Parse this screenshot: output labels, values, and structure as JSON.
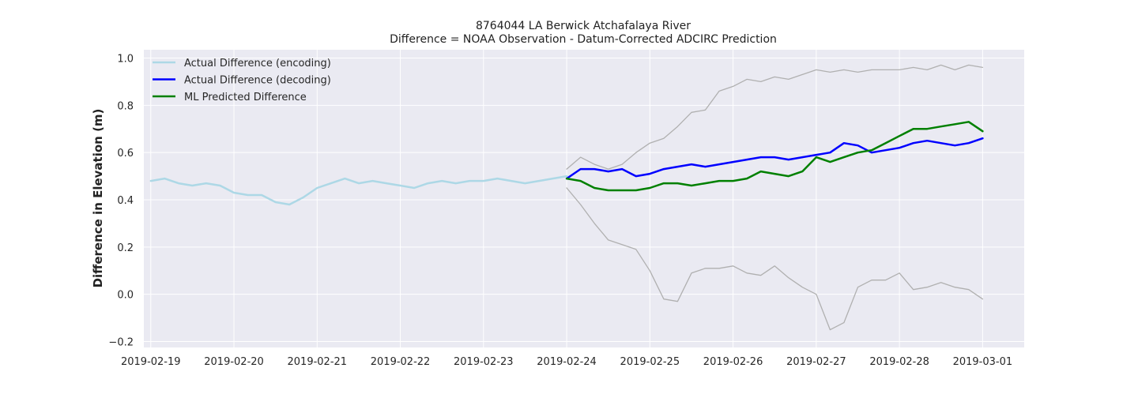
{
  "chart_data": {
    "type": "line",
    "title": "8764044 LA Berwick Atchafalaya River",
    "subtitle": "Difference = NOAA Observation - Datum-Corrected ADCIRC Prediction",
    "xlabel": "",
    "ylabel": "Difference in Elevation (m)",
    "x_ticks": [
      "2019-02-19",
      "2019-02-20",
      "2019-02-21",
      "2019-02-22",
      "2019-02-23",
      "2019-02-24",
      "2019-02-25",
      "2019-02-26",
      "2019-02-27",
      "2019-02-28",
      "2019-03-01"
    ],
    "y_ticks": [
      "−0.2",
      "0.0",
      "0.2",
      "0.4",
      "0.6",
      "0.8",
      "1.0"
    ],
    "y_tick_values": [
      -0.2,
      0.0,
      0.2,
      0.4,
      0.6,
      0.8,
      1.0
    ],
    "xlim": [
      "2019-02-18T22:00",
      "2019-03-01T12:00"
    ],
    "ylim": [
      -0.225,
      1.035
    ],
    "grid": true,
    "legend_position": "top-left",
    "colors": {
      "background": "#eaeaf2",
      "grid": "#ffffff",
      "encoding": "#add8e6",
      "decoding": "#0000ff",
      "predicted": "#008000",
      "bounds": "#b0b0b0"
    },
    "series": [
      {
        "name": "Actual Difference (encoding)",
        "color": "#add8e6",
        "width": 2.5,
        "points": [
          [
            "2019-02-19T00:00",
            0.48
          ],
          [
            "2019-02-19T04:00",
            0.49
          ],
          [
            "2019-02-19T08:00",
            0.47
          ],
          [
            "2019-02-19T12:00",
            0.46
          ],
          [
            "2019-02-19T16:00",
            0.47
          ],
          [
            "2019-02-19T20:00",
            0.46
          ],
          [
            "2019-02-20T00:00",
            0.43
          ],
          [
            "2019-02-20T04:00",
            0.42
          ],
          [
            "2019-02-20T08:00",
            0.42
          ],
          [
            "2019-02-20T12:00",
            0.39
          ],
          [
            "2019-02-20T16:00",
            0.38
          ],
          [
            "2019-02-20T20:00",
            0.41
          ],
          [
            "2019-02-21T00:00",
            0.45
          ],
          [
            "2019-02-21T04:00",
            0.47
          ],
          [
            "2019-02-21T08:00",
            0.49
          ],
          [
            "2019-02-21T12:00",
            0.47
          ],
          [
            "2019-02-21T16:00",
            0.48
          ],
          [
            "2019-02-21T20:00",
            0.47
          ],
          [
            "2019-02-22T00:00",
            0.46
          ],
          [
            "2019-02-22T04:00",
            0.45
          ],
          [
            "2019-02-22T08:00",
            0.47
          ],
          [
            "2019-02-22T12:00",
            0.48
          ],
          [
            "2019-02-22T16:00",
            0.47
          ],
          [
            "2019-02-22T20:00",
            0.48
          ],
          [
            "2019-02-23T00:00",
            0.48
          ],
          [
            "2019-02-23T04:00",
            0.49
          ],
          [
            "2019-02-23T08:00",
            0.48
          ],
          [
            "2019-02-23T12:00",
            0.47
          ],
          [
            "2019-02-23T16:00",
            0.48
          ],
          [
            "2019-02-23T20:00",
            0.49
          ],
          [
            "2019-02-24T00:00",
            0.5
          ]
        ]
      },
      {
        "name": "Actual Difference (decoding)",
        "color": "#0000ff",
        "width": 2.5,
        "points": [
          [
            "2019-02-24T00:00",
            0.49
          ],
          [
            "2019-02-24T04:00",
            0.53
          ],
          [
            "2019-02-24T08:00",
            0.53
          ],
          [
            "2019-02-24T12:00",
            0.52
          ],
          [
            "2019-02-24T16:00",
            0.53
          ],
          [
            "2019-02-24T20:00",
            0.5
          ],
          [
            "2019-02-25T00:00",
            0.51
          ],
          [
            "2019-02-25T04:00",
            0.53
          ],
          [
            "2019-02-25T08:00",
            0.54
          ],
          [
            "2019-02-25T12:00",
            0.55
          ],
          [
            "2019-02-25T16:00",
            0.54
          ],
          [
            "2019-02-25T20:00",
            0.55
          ],
          [
            "2019-02-26T00:00",
            0.56
          ],
          [
            "2019-02-26T04:00",
            0.57
          ],
          [
            "2019-02-26T08:00",
            0.58
          ],
          [
            "2019-02-26T12:00",
            0.58
          ],
          [
            "2019-02-26T16:00",
            0.57
          ],
          [
            "2019-02-26T20:00",
            0.58
          ],
          [
            "2019-02-27T00:00",
            0.59
          ],
          [
            "2019-02-27T04:00",
            0.6
          ],
          [
            "2019-02-27T08:00",
            0.64
          ],
          [
            "2019-02-27T12:00",
            0.63
          ],
          [
            "2019-02-27T16:00",
            0.6
          ],
          [
            "2019-02-27T20:00",
            0.61
          ],
          [
            "2019-02-28T00:00",
            0.62
          ],
          [
            "2019-02-28T04:00",
            0.64
          ],
          [
            "2019-02-28T08:00",
            0.65
          ],
          [
            "2019-02-28T12:00",
            0.64
          ],
          [
            "2019-02-28T16:00",
            0.63
          ],
          [
            "2019-02-28T20:00",
            0.64
          ],
          [
            "2019-03-01T00:00",
            0.66
          ]
        ]
      },
      {
        "name": "ML Predicted Difference",
        "color": "#008000",
        "width": 2.5,
        "points": [
          [
            "2019-02-24T00:00",
            0.49
          ],
          [
            "2019-02-24T04:00",
            0.48
          ],
          [
            "2019-02-24T08:00",
            0.45
          ],
          [
            "2019-02-24T12:00",
            0.44
          ],
          [
            "2019-02-24T16:00",
            0.44
          ],
          [
            "2019-02-24T20:00",
            0.44
          ],
          [
            "2019-02-25T00:00",
            0.45
          ],
          [
            "2019-02-25T04:00",
            0.47
          ],
          [
            "2019-02-25T08:00",
            0.47
          ],
          [
            "2019-02-25T12:00",
            0.46
          ],
          [
            "2019-02-25T16:00",
            0.47
          ],
          [
            "2019-02-25T20:00",
            0.48
          ],
          [
            "2019-02-26T00:00",
            0.48
          ],
          [
            "2019-02-26T04:00",
            0.49
          ],
          [
            "2019-02-26T08:00",
            0.52
          ],
          [
            "2019-02-26T12:00",
            0.51
          ],
          [
            "2019-02-26T16:00",
            0.5
          ],
          [
            "2019-02-26T20:00",
            0.52
          ],
          [
            "2019-02-27T00:00",
            0.58
          ],
          [
            "2019-02-27T04:00",
            0.56
          ],
          [
            "2019-02-27T08:00",
            0.58
          ],
          [
            "2019-02-27T12:00",
            0.6
          ],
          [
            "2019-02-27T16:00",
            0.61
          ],
          [
            "2019-02-27T20:00",
            0.64
          ],
          [
            "2019-02-28T00:00",
            0.67
          ],
          [
            "2019-02-28T04:00",
            0.7
          ],
          [
            "2019-02-28T08:00",
            0.7
          ],
          [
            "2019-02-28T12:00",
            0.71
          ],
          [
            "2019-02-28T16:00",
            0.72
          ],
          [
            "2019-02-28T20:00",
            0.73
          ],
          [
            "2019-03-01T00:00",
            0.69
          ]
        ]
      },
      {
        "name": "",
        "color": "#b0b0b0",
        "width": 1.3,
        "points": [
          [
            "2019-02-24T00:00",
            0.53
          ],
          [
            "2019-02-24T04:00",
            0.58
          ],
          [
            "2019-02-24T08:00",
            0.55
          ],
          [
            "2019-02-24T12:00",
            0.53
          ],
          [
            "2019-02-24T16:00",
            0.55
          ],
          [
            "2019-02-24T20:00",
            0.6
          ],
          [
            "2019-02-25T00:00",
            0.64
          ],
          [
            "2019-02-25T04:00",
            0.66
          ],
          [
            "2019-02-25T08:00",
            0.71
          ],
          [
            "2019-02-25T12:00",
            0.77
          ],
          [
            "2019-02-25T16:00",
            0.78
          ],
          [
            "2019-02-25T20:00",
            0.86
          ],
          [
            "2019-02-26T00:00",
            0.88
          ],
          [
            "2019-02-26T04:00",
            0.91
          ],
          [
            "2019-02-26T08:00",
            0.9
          ],
          [
            "2019-02-26T12:00",
            0.92
          ],
          [
            "2019-02-26T16:00",
            0.91
          ],
          [
            "2019-02-26T20:00",
            0.93
          ],
          [
            "2019-02-27T00:00",
            0.95
          ],
          [
            "2019-02-27T04:00",
            0.94
          ],
          [
            "2019-02-27T08:00",
            0.95
          ],
          [
            "2019-02-27T12:00",
            0.94
          ],
          [
            "2019-02-27T16:00",
            0.95
          ],
          [
            "2019-02-27T20:00",
            0.95
          ],
          [
            "2019-02-28T00:00",
            0.95
          ],
          [
            "2019-02-28T04:00",
            0.96
          ],
          [
            "2019-02-28T08:00",
            0.95
          ],
          [
            "2019-02-28T12:00",
            0.97
          ],
          [
            "2019-02-28T16:00",
            0.95
          ],
          [
            "2019-02-28T20:00",
            0.97
          ],
          [
            "2019-03-01T00:00",
            0.96
          ]
        ]
      },
      {
        "name": "",
        "color": "#b0b0b0",
        "width": 1.3,
        "points": [
          [
            "2019-02-24T00:00",
            0.45
          ],
          [
            "2019-02-24T04:00",
            0.38
          ],
          [
            "2019-02-24T08:00",
            0.3
          ],
          [
            "2019-02-24T12:00",
            0.23
          ],
          [
            "2019-02-24T16:00",
            0.21
          ],
          [
            "2019-02-24T20:00",
            0.19
          ],
          [
            "2019-02-25T00:00",
            0.1
          ],
          [
            "2019-02-25T04:00",
            -0.02
          ],
          [
            "2019-02-25T08:00",
            -0.03
          ],
          [
            "2019-02-25T12:00",
            0.09
          ],
          [
            "2019-02-25T16:00",
            0.11
          ],
          [
            "2019-02-25T20:00",
            0.11
          ],
          [
            "2019-02-26T00:00",
            0.12
          ],
          [
            "2019-02-26T04:00",
            0.09
          ],
          [
            "2019-02-26T08:00",
            0.08
          ],
          [
            "2019-02-26T12:00",
            0.12
          ],
          [
            "2019-02-26T16:00",
            0.07
          ],
          [
            "2019-02-26T20:00",
            0.03
          ],
          [
            "2019-02-27T00:00",
            0.0
          ],
          [
            "2019-02-27T04:00",
            -0.15
          ],
          [
            "2019-02-27T08:00",
            -0.12
          ],
          [
            "2019-02-27T12:00",
            0.03
          ],
          [
            "2019-02-27T16:00",
            0.06
          ],
          [
            "2019-02-27T20:00",
            0.06
          ],
          [
            "2019-02-28T00:00",
            0.09
          ],
          [
            "2019-02-28T04:00",
            0.02
          ],
          [
            "2019-02-28T08:00",
            0.03
          ],
          [
            "2019-02-28T12:00",
            0.05
          ],
          [
            "2019-02-28T16:00",
            0.03
          ],
          [
            "2019-02-28T20:00",
            0.02
          ],
          [
            "2019-03-01T00:00",
            -0.02
          ]
        ]
      }
    ]
  }
}
